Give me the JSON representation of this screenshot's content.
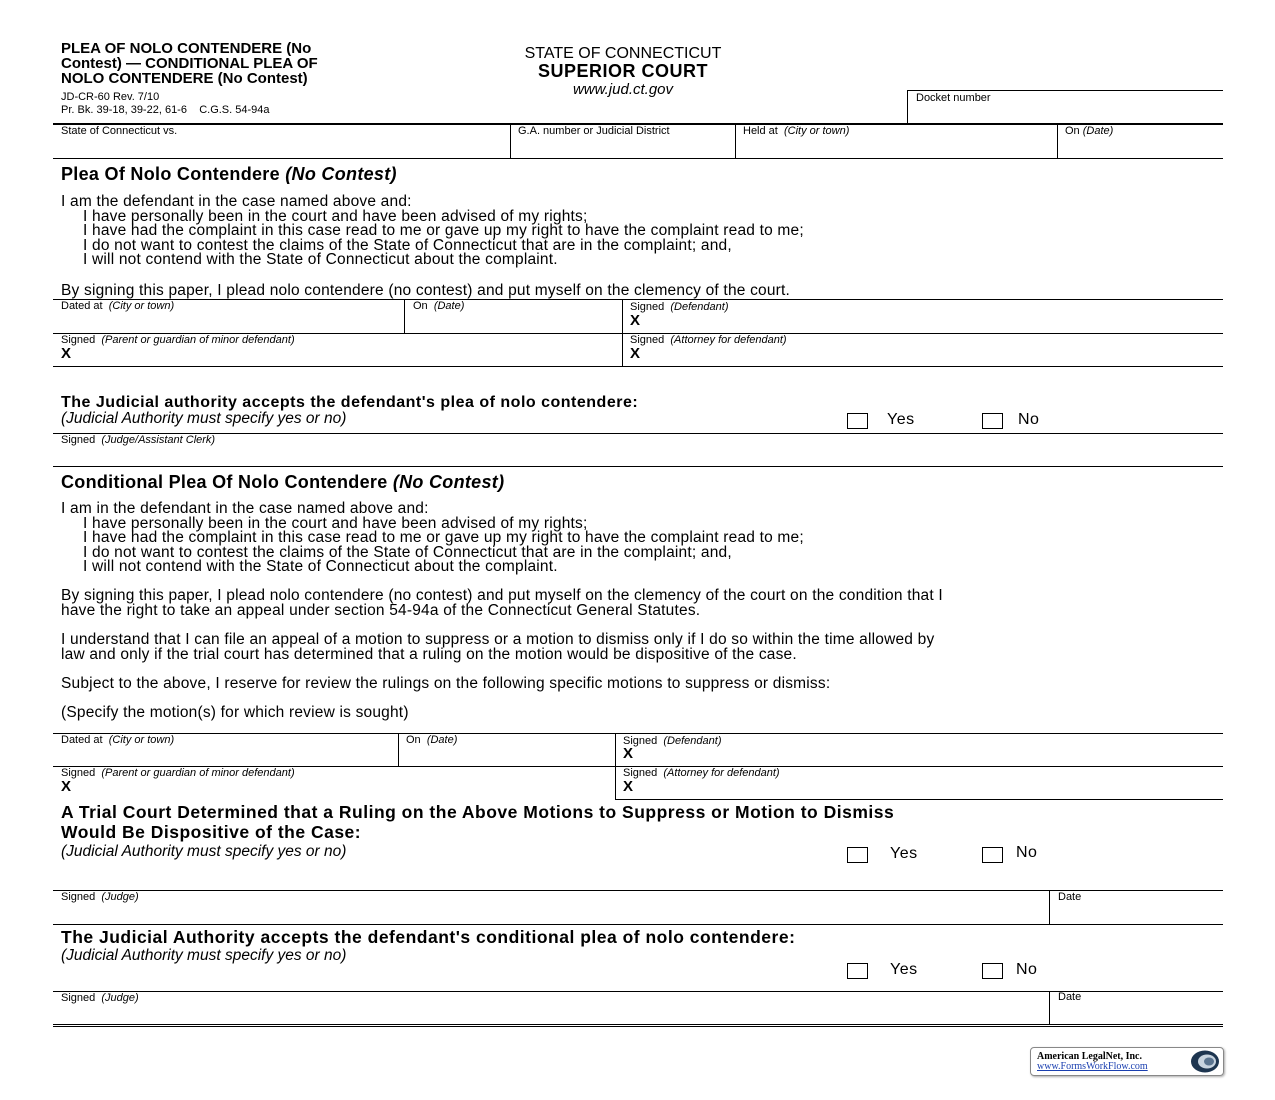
{
  "header": {
    "title_lines": [
      "PLEA OF NOLO CONTENDERE (No",
      "Contest) — CONDITIONAL PLEA OF",
      "NOLO CONTENDERE (No Contest)"
    ],
    "form_number": "JD-CR-60 Rev. 7/10",
    "references": "Pr. Bk. 39-18, 39-22, 61-6    C.G.S. 54-94a",
    "state": "STATE OF CONNECTICUT",
    "court": "SUPERIOR COURT",
    "website": "www.jud.ct.gov",
    "docket_label": "Docket number"
  },
  "case_row": {
    "state_vs": "State of Connecticut vs.",
    "ga": "G.A. number or Judicial District",
    "held_at": "Held at",
    "held_at_hint": "(City or town)",
    "on": "On",
    "on_hint": "(Date)"
  },
  "plea": {
    "heading": "Plea Of Nolo Contendere ",
    "heading_italic": "(No Contest)",
    "intro": "I am the defendant in the case named above and:",
    "items": [
      "I have personally been in the court and have been advised of my rights;",
      "I have had the complaint in this case read to me or gave up my right to have the complaint read to me;",
      "I do not want to contest the claims of the State of Connecticut that are in the complaint; and,",
      "I will not contend with the State of Connecticut about the complaint."
    ],
    "signing": "By signing this paper, I plead nolo contendere (no contest) and put myself on the clemency of the court."
  },
  "sig": {
    "dated_at": "Dated at",
    "city_hint": "(City or town)",
    "on": "On",
    "date_hint": "(Date)",
    "signed": "Signed",
    "defendant_hint": "(Defendant)",
    "guardian_hint": "(Parent or guardian of minor defendant)",
    "attorney_hint": "(Attorney for defendant)",
    "x": "X",
    "judge_clerk_hint": "(Judge/Assistant Clerk)",
    "judge_hint": "(Judge)",
    "date": "Date"
  },
  "acceptance": {
    "heading": "The Judicial authority accepts the defendant's plea of nolo contendere:",
    "note": "(Judicial Authority must specify yes or no)",
    "yes": "Yes",
    "no": "No"
  },
  "conditional": {
    "heading": "Conditional Plea Of Nolo Contendere ",
    "heading_italic": "(No Contest)",
    "intro": "I am in the defendant in the case named above and:",
    "items": [
      "I have personally been in the court and have been advised of my rights;",
      "I have had the complaint in this case read to me or gave up my right to have the complaint read to me;",
      "I do not want to contest the claims of the State of Connecticut that are in the complaint; and,",
      "I will not contend with the State of Connecticut about the complaint."
    ],
    "signing": [
      "By signing this paper, I plead nolo contendere (no contest) and put myself on the clemency of the court on the condition that I",
      "have the right to take an appeal under section 54-94a of the Connecticut General Statutes."
    ],
    "understand": [
      "I understand that I can file an appeal of a motion to suppress or a motion to dismiss only if I do so within the time allowed by",
      "law and only if the trial court has determined that a ruling on the motion would be dispositive of the case."
    ],
    "subject": "Subject to the above, I reserve for review the rulings on the following specific motions to suppress or dismiss:",
    "specify": "(Specify the motion(s) for which review is sought)"
  },
  "trial": {
    "heading_lines": [
      "A Trial Court Determined that a Ruling on the Above Motions to Suppress or Motion to Dismiss",
      "Would Be Dispositive of the Case:"
    ],
    "note": "(Judicial Authority must specify yes or no)"
  },
  "final": {
    "heading": "The Judicial Authority accepts the defendant's conditional plea of nolo contendere:",
    "note": "(Judicial Authority must specify yes or no)"
  },
  "logo": {
    "company": "American LegalNet, Inc.",
    "url": "www.FormsWorkFlow.com"
  }
}
